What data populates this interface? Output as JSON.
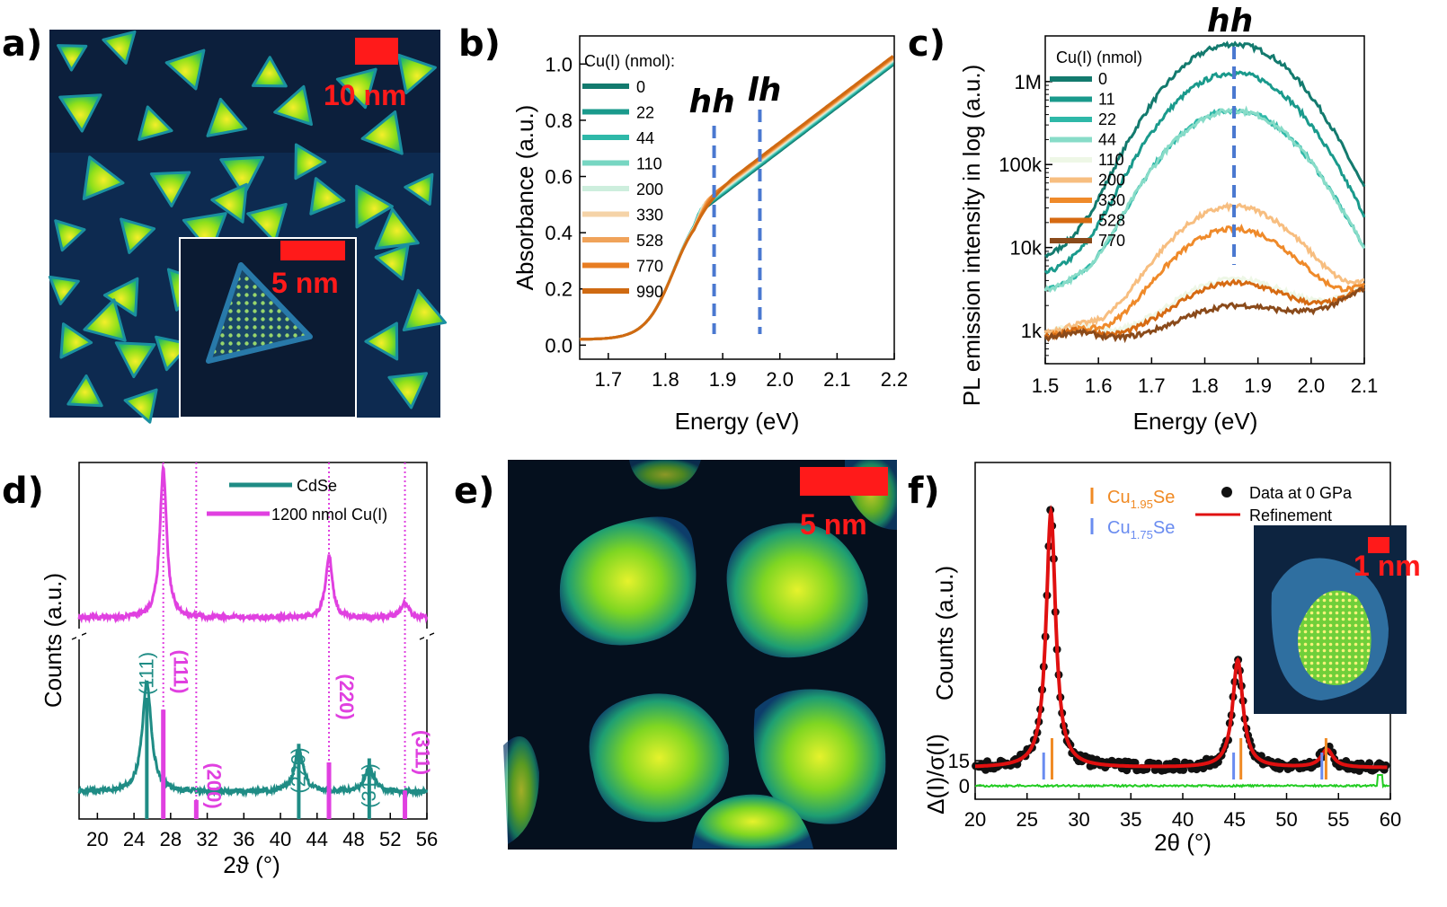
{
  "panels": {
    "a": {
      "label": "a)",
      "scale_main": "10 nm",
      "scale_inset": "5 nm"
    },
    "b": {
      "label": "b)"
    },
    "c": {
      "label": "c)"
    },
    "d": {
      "label": "d)"
    },
    "e": {
      "label": "e)",
      "scale": "5 nm"
    },
    "f": {
      "label": "f)",
      "scale_inset": "1 nm"
    }
  },
  "colors": {
    "scale_bar": "#ff1a1a",
    "cdse": "#1f8c85",
    "cu_sample": "#e040e0",
    "guide": "#4a78d0",
    "refine": "#e01010",
    "diff": "#22cc22",
    "cu195": "#f08a24",
    "cu175": "#6a8cf0"
  },
  "chart_data": [
    {
      "id": "b",
      "type": "line",
      "xlabel": "Energy (eV)",
      "ylabel": "Absorbance (a.u.)",
      "xlim": [
        1.65,
        2.2
      ],
      "ylim": [
        -0.05,
        1.1
      ],
      "xticks": [
        "1.7",
        "1.8",
        "1.9",
        "2.0",
        "2.1",
        "2.2"
      ],
      "yticks": [
        "0.0",
        "0.2",
        "0.4",
        "0.6",
        "0.8",
        "1.0"
      ],
      "legend_title": "Cu(I) (nmol):",
      "annotations": [
        {
          "text": "hh",
          "x": 1.885
        },
        {
          "text": "lh",
          "x": 1.965
        }
      ],
      "series": [
        {
          "name": "0",
          "color": "#137a6e",
          "excitonic": 1.0
        },
        {
          "name": "22",
          "color": "#1a9a8c",
          "excitonic": 0.95
        },
        {
          "name": "44",
          "color": "#2eb8a8",
          "excitonic": 0.9
        },
        {
          "name": "110",
          "color": "#77d6c2",
          "excitonic": 0.75
        },
        {
          "name": "200",
          "color": "#cdeedd",
          "excitonic": 0.6
        },
        {
          "name": "330",
          "color": "#f5d3a8",
          "excitonic": 0.45
        },
        {
          "name": "528",
          "color": "#f0a35a",
          "excitonic": 0.3
        },
        {
          "name": "770",
          "color": "#e87d22",
          "excitonic": 0.15
        },
        {
          "name": "990",
          "color": "#cf6a12",
          "excitonic": 0.0
        }
      ]
    },
    {
      "id": "c",
      "type": "line",
      "xlabel": "Energy (eV)",
      "ylabel": "PL emission intensity in log (a.u.)",
      "xlim": [
        1.5,
        2.1
      ],
      "ylim_log": [
        2.6,
        6.55
      ],
      "xticks": [
        "1.5",
        "1.6",
        "1.7",
        "1.8",
        "1.9",
        "2.0",
        "2.1"
      ],
      "yticks": [
        {
          "label": "1k",
          "log": 3
        },
        {
          "label": "10k",
          "log": 4
        },
        {
          "label": "100k",
          "log": 5
        },
        {
          "label": "1M",
          "log": 6
        }
      ],
      "legend_title": "Cu(I) (nmol)",
      "annotations": [
        {
          "text": "hh",
          "x": 1.855
        }
      ],
      "peak_center": 1.855,
      "series": [
        {
          "name": "0",
          "color": "#137a6e",
          "peak_log": 6.45,
          "base_log": 3.85
        },
        {
          "name": "11",
          "color": "#1a9a8c",
          "peak_log": 6.1,
          "base_log": 3.65
        },
        {
          "name": "22",
          "color": "#2eb8a8",
          "peak_log": 5.65,
          "base_log": 3.45
        },
        {
          "name": "44",
          "color": "#88dcc8",
          "peak_log": 5.65,
          "base_log": 3.45
        },
        {
          "name": "110",
          "color": "#eef7e6",
          "peak_log": 3.5,
          "base_log": 2.95
        },
        {
          "name": "200",
          "color": "#f7be80",
          "peak_log": 4.48,
          "base_log": 2.95
        },
        {
          "name": "330",
          "color": "#ef8a2a",
          "peak_log": 4.2,
          "base_log": 2.9
        },
        {
          "name": "528",
          "color": "#d66a12",
          "peak_log": 3.45,
          "base_log": 2.9
        },
        {
          "name": "770",
          "color": "#8a4a1a",
          "peak_log": 3.05,
          "base_log": 2.88
        }
      ]
    },
    {
      "id": "d",
      "type": "line",
      "xlabel": "2ϑ (°)",
      "ylabel": "Counts (a.u.)",
      "xlim": [
        18,
        56
      ],
      "xticks": [
        "20",
        "24",
        "28",
        "32",
        "36",
        "40",
        "44",
        "48",
        "52",
        "56"
      ],
      "legend": [
        "CdSe",
        "1200 nmol Cu(I)"
      ],
      "cdse_peaks": [
        {
          "x": 25.4,
          "h": 1.0,
          "w": 0.6
        },
        {
          "x": 42.0,
          "h": 0.38,
          "w": 0.6
        },
        {
          "x": 49.7,
          "h": 0.22,
          "w": 0.6
        }
      ],
      "cu_peaks": [
        {
          "x": 27.2,
          "h": 1.0,
          "w": 0.45
        },
        {
          "x": 45.3,
          "h": 0.42,
          "w": 0.45
        },
        {
          "x": 53.6,
          "h": 0.1,
          "w": 0.5
        }
      ],
      "cdse_sticks": [
        {
          "x": 25.4,
          "h": 1.0
        },
        {
          "x": 42.0,
          "h": 0.62
        },
        {
          "x": 49.7,
          "h": 0.5
        }
      ],
      "cu_sticks": [
        {
          "x": 27.2,
          "h": 0.58
        },
        {
          "x": 30.8,
          "h": 0.1
        },
        {
          "x": 45.3,
          "h": 0.3
        },
        {
          "x": 53.6,
          "h": 0.15
        }
      ],
      "hkl_cdse": [
        {
          "text": "(111)",
          "x": 25.4
        },
        {
          "text": "(220)",
          "x": 42.0
        },
        {
          "text": "(311)",
          "x": 49.7
        }
      ],
      "hkl_cu": [
        {
          "text": "(111)",
          "x": 27.2
        },
        {
          "text": "(200)",
          "x": 30.8
        },
        {
          "text": "(220)",
          "x": 45.3
        },
        {
          "text": "(311)",
          "x": 53.6
        }
      ]
    },
    {
      "id": "f",
      "type": "line",
      "xlabel": "2θ (°)",
      "ylabel": "Counts (a.u.)",
      "ylabel2": "Δ(I)/σ(I)",
      "xlim": [
        20,
        60
      ],
      "xticks": [
        "20",
        "25",
        "30",
        "35",
        "40",
        "45",
        "50",
        "55",
        "60"
      ],
      "diff_ticks": [
        "0",
        "15"
      ],
      "legend": [
        "Data at 0 GPa",
        "Refinement"
      ],
      "phases": [
        {
          "name": "Cu",
          "sub": "1.95",
          "suffix": "Se"
        },
        {
          "name": "Cu",
          "sub": "1.75",
          "suffix": "Se"
        }
      ],
      "peaks": [
        {
          "x": 27.3,
          "h": 1.0,
          "w": 0.55
        },
        {
          "x": 45.3,
          "h": 0.42,
          "w": 0.6
        },
        {
          "x": 53.9,
          "h": 0.07,
          "w": 0.7
        }
      ],
      "cu195_sticks": [
        27.4,
        45.6,
        53.8
      ],
      "cu175_sticks": [
        26.6,
        44.9,
        53.4
      ]
    }
  ]
}
